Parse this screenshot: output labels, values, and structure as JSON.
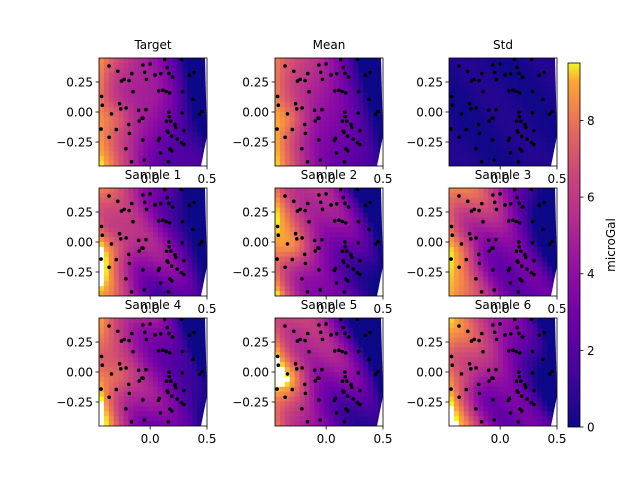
{
  "chart_data": {
    "type": "heatmap",
    "colormap": "plasma",
    "point_color": "#000000",
    "panels": [
      {
        "title": "Target",
        "field": "target"
      },
      {
        "title": "Mean",
        "field": "mean"
      },
      {
        "title": "Std",
        "field": "std"
      },
      {
        "title": "Sample 1",
        "field": "sample"
      },
      {
        "title": "Sample 2",
        "field": "sample"
      },
      {
        "title": "Sample 3",
        "field": "sample"
      },
      {
        "title": "Sample 4",
        "field": "sample"
      },
      {
        "title": "Sample 5",
        "field": "sample"
      },
      {
        "title": "Sample 6",
        "field": "sample"
      }
    ],
    "x_ticks": [
      "0.0",
      "0.5"
    ],
    "y_ticks": [
      "0.25",
      "0.00",
      "−0.25"
    ],
    "xlim": [
      -0.45,
      0.5
    ],
    "ylim": [
      -0.45,
      0.45
    ],
    "colorbar": {
      "label": "microGal",
      "ticks": [
        "0",
        "2",
        "4",
        "6",
        "8"
      ],
      "range": [
        0,
        9.5
      ]
    }
  }
}
